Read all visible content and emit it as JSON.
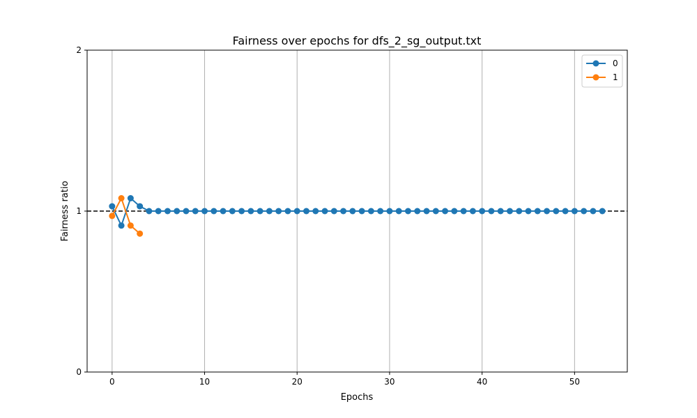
{
  "chart_data": {
    "type": "line",
    "title": "Fairness over epochs for dfs_2_sg_output.txt",
    "xlabel": "Epochs",
    "ylabel": "Fairness ratio",
    "xlim": [
      -2.7,
      55.7
    ],
    "ylim": [
      0,
      2
    ],
    "xticks": [
      0,
      10,
      20,
      30,
      40,
      50
    ],
    "yticks": [
      0,
      1,
      2
    ],
    "grid": "x-axis vertical lines",
    "legend_position": "top-right",
    "reference_line": {
      "y": 1,
      "style": "dashed",
      "color": "#000000"
    },
    "series": [
      {
        "name": "0",
        "color": "#1f77b4",
        "x": [
          0,
          1,
          2,
          3,
          4,
          5,
          6,
          7,
          8,
          9,
          10,
          11,
          12,
          13,
          14,
          15,
          16,
          17,
          18,
          19,
          20,
          21,
          22,
          23,
          24,
          25,
          26,
          27,
          28,
          29,
          30,
          31,
          32,
          33,
          34,
          35,
          36,
          37,
          38,
          39,
          40,
          41,
          42,
          43,
          44,
          45,
          46,
          47,
          48,
          49,
          50,
          51,
          52,
          53
        ],
        "y": [
          1.03,
          0.91,
          1.08,
          1.03,
          1,
          1,
          1,
          1,
          1,
          1,
          1,
          1,
          1,
          1,
          1,
          1,
          1,
          1,
          1,
          1,
          1,
          1,
          1,
          1,
          1,
          1,
          1,
          1,
          1,
          1,
          1,
          1,
          1,
          1,
          1,
          1,
          1,
          1,
          1,
          1,
          1,
          1,
          1,
          1,
          1,
          1,
          1,
          1,
          1,
          1,
          1,
          1,
          1,
          1
        ]
      },
      {
        "name": "1",
        "color": "#ff7f0e",
        "x": [
          0,
          1,
          2,
          3
        ],
        "y": [
          0.97,
          1.08,
          0.91,
          0.86
        ]
      }
    ]
  }
}
